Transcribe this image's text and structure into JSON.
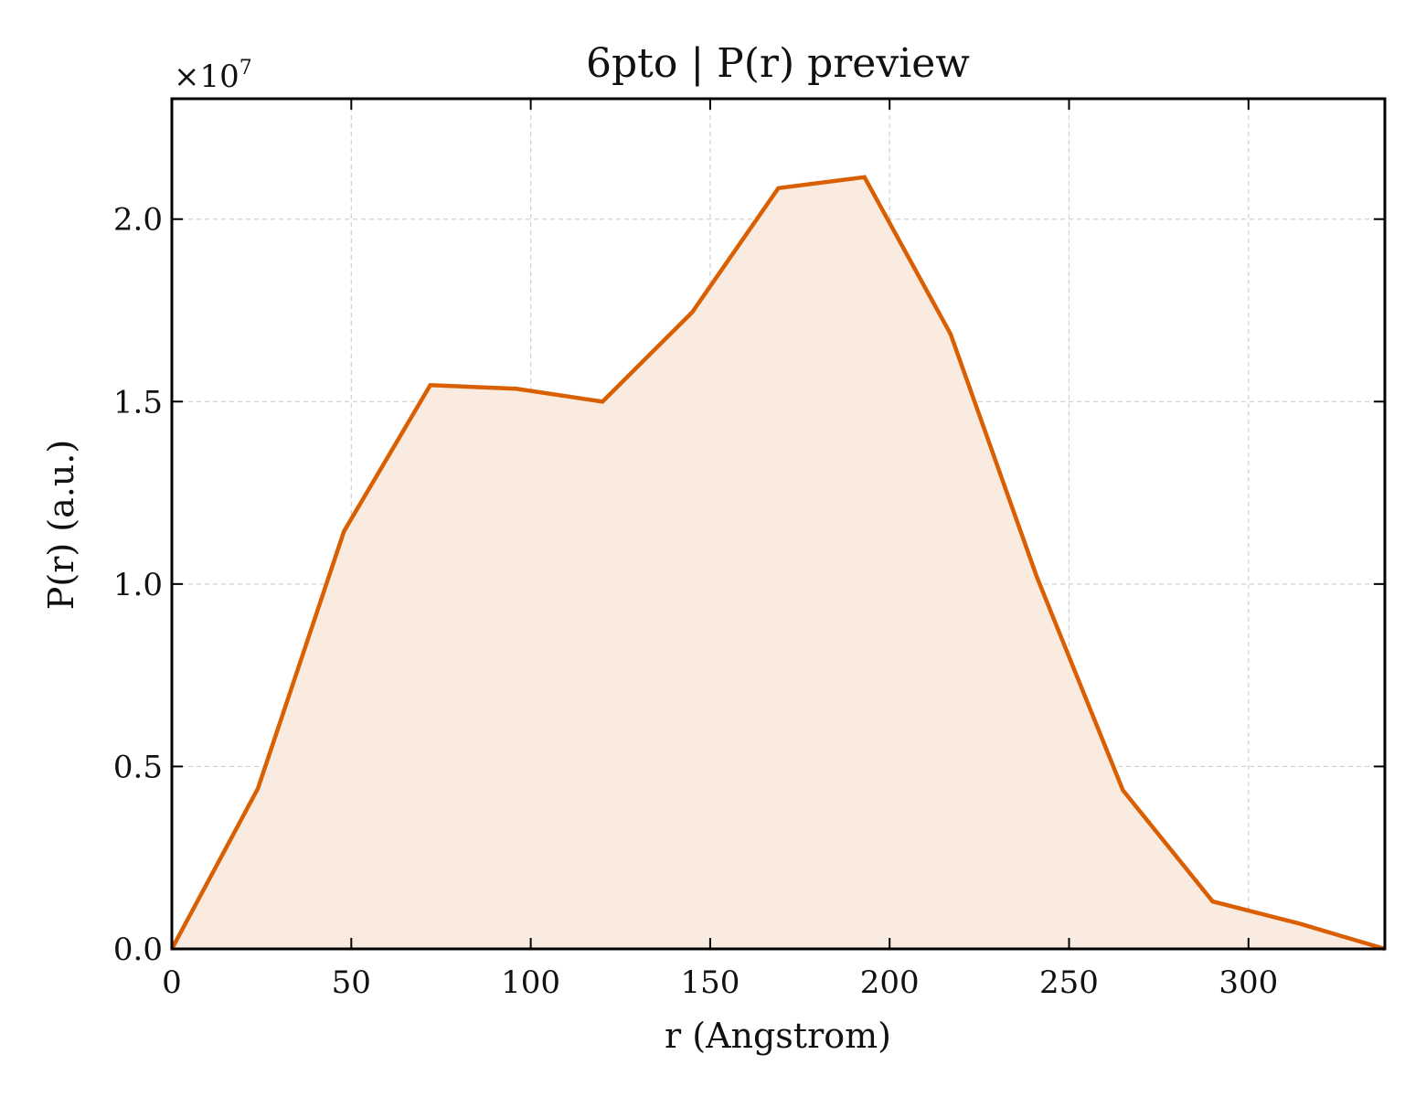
{
  "chart_data": {
    "type": "area",
    "title": "6pto | P(r) preview",
    "xlabel": "r (Angstrom)",
    "ylabel": "P(r) (a.u.)",
    "y_multiplier_label": "×10",
    "y_multiplier_exponent": "7",
    "xlim": [
      0,
      338
    ],
    "ylim": [
      0,
      2.33
    ],
    "x_ticks": [
      0,
      50,
      100,
      150,
      200,
      250,
      300
    ],
    "y_ticks": [
      0.0,
      0.5,
      1.0,
      1.5,
      2.0
    ],
    "x_tick_labels": [
      "0",
      "50",
      "100",
      "150",
      "200",
      "250",
      "300"
    ],
    "y_tick_labels": [
      "0.0",
      "0.5",
      "1.0",
      "1.5",
      "2.0"
    ],
    "grid": true,
    "series": [
      {
        "x": [
          0,
          24,
          48,
          72,
          96,
          120,
          145,
          169,
          193,
          217,
          241,
          265,
          290,
          314,
          338
        ],
        "y": [
          0.0,
          0.44,
          1.145,
          1.545,
          1.535,
          1.5,
          1.745,
          2.085,
          2.115,
          1.685,
          1.02,
          0.435,
          0.13,
          0.07,
          0.0
        ],
        "color": "#d95f02",
        "fill_color": "#f9ebe0"
      }
    ]
  }
}
